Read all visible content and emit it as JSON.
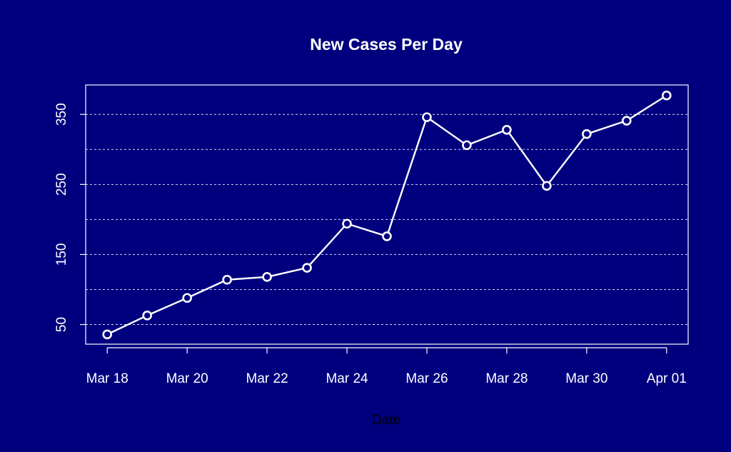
{
  "chart_data": {
    "type": "line",
    "title": "New Cases Per Day",
    "xlabel": "Date",
    "ylabel": "",
    "x": [
      "2020-03-18",
      "2020-03-19",
      "2020-03-20",
      "2020-03-21",
      "2020-03-22",
      "2020-03-23",
      "2020-03-24",
      "2020-03-25",
      "2020-03-26",
      "2020-03-27",
      "2020-03-28",
      "2020-03-29",
      "2020-03-30",
      "2020-03-31",
      "2020-04-01"
    ],
    "series": [
      {
        "values": [
          36,
          63,
          88,
          114,
          118,
          131,
          194,
          176,
          346,
          306,
          328,
          248,
          322,
          341,
          377
        ]
      }
    ],
    "x_ticks": [
      "Mar 18",
      "Mar 20",
      "Mar 22",
      "Mar 24",
      "Mar 26",
      "Mar 28",
      "Mar 30",
      "Apr 01"
    ],
    "y_ticks": [
      50,
      150,
      250,
      350
    ],
    "ylim": [
      22,
      392
    ],
    "grid": "horizontal dashed",
    "colors": {
      "background": "#00007f",
      "foreground": "#ffffff",
      "xlabel": "#000000"
    }
  }
}
